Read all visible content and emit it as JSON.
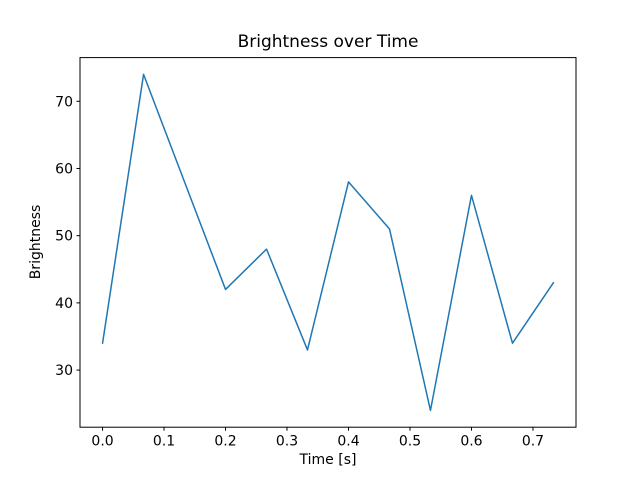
{
  "figure": {
    "background": "#ffffff",
    "text_color": "#000000",
    "spine_color": "#000000"
  },
  "chart_data": {
    "type": "line",
    "title": "Brightness over Time",
    "xlabel": "Time [s]",
    "ylabel": "Brightness",
    "series": [
      {
        "name": "Brightness",
        "x": [
          0.0,
          0.0667,
          0.1333,
          0.2,
          0.2667,
          0.3333,
          0.4,
          0.4667,
          0.5333,
          0.6,
          0.6667,
          0.7333
        ],
        "y": [
          34,
          74,
          58,
          42,
          48,
          33,
          58,
          51,
          24,
          56,
          34,
          43
        ],
        "color": "#1f77b4",
        "line_width": 1.5
      }
    ],
    "xlim": [
      -0.03667,
      0.77
    ],
    "ylim": [
      21.5,
      76.5
    ],
    "xticks": [
      0.0,
      0.1,
      0.2,
      0.3,
      0.4,
      0.5,
      0.6,
      0.7
    ],
    "xtick_labels": [
      "0.0",
      "0.1",
      "0.2",
      "0.3",
      "0.4",
      "0.5",
      "0.6",
      "0.7"
    ],
    "yticks": [
      30,
      40,
      50,
      60,
      70
    ],
    "ytick_labels": [
      "30",
      "40",
      "50",
      "60",
      "70"
    ],
    "grid": false,
    "legend_position": "none"
  }
}
